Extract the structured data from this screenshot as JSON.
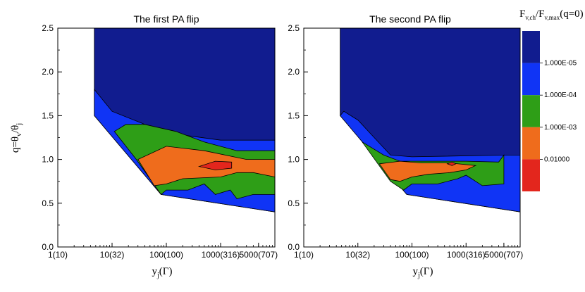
{
  "chart_data": [
    {
      "type": "contour",
      "title": "The first PA flip",
      "xlabel": "y_j(Γ)",
      "ylabel": "q=θ_v/θ_j",
      "x_scale": "log",
      "x_ticks": [
        {
          "value": 1,
          "label": "1(10)"
        },
        {
          "value": 10,
          "label": "10(32)"
        },
        {
          "value": 100,
          "label": "100(100)"
        },
        {
          "value": 1000,
          "label": "1000(316)"
        },
        {
          "value": 5000,
          "label": "5000(707)"
        }
      ],
      "y_ticks": [
        0.0,
        0.5,
        1.0,
        1.5,
        2.0,
        2.5
      ],
      "y_tick_labels": [
        "0.0",
        "0.5",
        "1.0",
        "1.5",
        "2.0",
        "2.5"
      ],
      "xlim": [
        1,
        10000
      ],
      "ylim": [
        0,
        2.5
      ],
      "regions": [
        {
          "level": "<1.000E-05",
          "color": "#111c8f",
          "points": [
            [
              4.7,
              2.5
            ],
            [
              10000,
              2.5
            ],
            [
              10000,
              0.4
            ],
            [
              80,
              0.6
            ],
            [
              4.7,
              1.5
            ]
          ]
        },
        {
          "level": "1.000E-05",
          "color": "#1034f5",
          "points": [
            [
              4.7,
              1.8
            ],
            [
              10,
              1.55
            ],
            [
              40,
              1.4
            ],
            [
              200,
              1.28
            ],
            [
              1000,
              1.22
            ],
            [
              10000,
              1.22
            ],
            [
              10000,
              0.4
            ],
            [
              80,
              0.6
            ],
            [
              4.7,
              1.5
            ]
          ]
        },
        {
          "level": "1.000E-04",
          "color": "#2e9e17",
          "points": [
            [
              11,
              1.32
            ],
            [
              18,
              1.4
            ],
            [
              40,
              1.4
            ],
            [
              150,
              1.32
            ],
            [
              500,
              1.2
            ],
            [
              2000,
              1.1
            ],
            [
              10000,
              1.1
            ],
            [
              10000,
              0.6
            ],
            [
              4000,
              0.6
            ],
            [
              2000,
              0.55
            ],
            [
              1500,
              0.65
            ],
            [
              800,
              0.6
            ],
            [
              500,
              0.72
            ],
            [
              250,
              0.65
            ],
            [
              100,
              0.65
            ],
            [
              80,
              0.6
            ],
            [
              28,
              1.0
            ]
          ]
        },
        {
          "level": "1.000E-03",
          "color": "#ef6c1c",
          "points": [
            [
              30,
              1.0
            ],
            [
              100,
              1.15
            ],
            [
              500,
              1.1
            ],
            [
              3000,
              1.0
            ],
            [
              10000,
              1.0
            ],
            [
              10000,
              0.8
            ],
            [
              4000,
              0.85
            ],
            [
              2000,
              0.85
            ],
            [
              1000,
              0.8
            ],
            [
              200,
              0.78
            ],
            [
              100,
              0.72
            ],
            [
              60,
              0.7
            ]
          ]
        },
        {
          "level": "1.000E-02",
          "color": "#e3261d",
          "points": [
            [
              400,
              0.92
            ],
            [
              800,
              0.98
            ],
            [
              1600,
              0.97
            ],
            [
              1600,
              0.9
            ],
            [
              800,
              0.88
            ]
          ]
        }
      ]
    },
    {
      "type": "contour",
      "title": "The second PA flip",
      "xlabel": "y_j(Γ)",
      "ylabel": "",
      "x_scale": "log",
      "x_ticks": [
        {
          "value": 1,
          "label": "1(10)"
        },
        {
          "value": 10,
          "label": "10(32)"
        },
        {
          "value": 100,
          "label": "100(100)"
        },
        {
          "value": 1000,
          "label": "1000(316)"
        },
        {
          "value": 5000,
          "label": "5000(707)"
        }
      ],
      "y_ticks": [
        0.0,
        0.5,
        1.0,
        1.5,
        2.0,
        2.5
      ],
      "y_tick_labels": [
        "0.0",
        "0.5",
        "1.0",
        "1.5",
        "2.0",
        "2.5"
      ],
      "xlim": [
        1,
        10000
      ],
      "ylim": [
        0,
        2.5
      ],
      "regions": [
        {
          "level": "<1.000E-05",
          "color": "#111c8f",
          "points": [
            [
              4.7,
              2.5
            ],
            [
              10000,
              2.5
            ],
            [
              10000,
              0.4
            ],
            [
              80,
              0.6
            ],
            [
              4.7,
              1.5
            ]
          ]
        },
        {
          "level": "1.000E-05",
          "color": "#1034f5",
          "points": [
            [
              4.7,
              1.5
            ],
            [
              5.5,
              1.55
            ],
            [
              10,
              1.45
            ],
            [
              20,
              1.25
            ],
            [
              40,
              1.05
            ],
            [
              100,
              1.03
            ],
            [
              5000,
              1.05
            ],
            [
              10000,
              1.05
            ],
            [
              10000,
              0.4
            ],
            [
              80,
              0.6
            ]
          ]
        },
        {
          "level": "1.000E-04",
          "color": "#2e9e17",
          "points": [
            [
              12,
              1.2
            ],
            [
              30,
              1.05
            ],
            [
              60,
              0.98
            ],
            [
              150,
              0.98
            ],
            [
              1000,
              0.98
            ],
            [
              4000,
              0.97
            ],
            [
              5000,
              1.05
            ],
            [
              5000,
              0.72
            ],
            [
              2000,
              0.7
            ],
            [
              1000,
              0.82
            ],
            [
              700,
              0.78
            ],
            [
              300,
              0.72
            ],
            [
              100,
              0.72
            ],
            [
              70,
              0.65
            ],
            [
              40,
              0.75
            ]
          ]
        },
        {
          "level": "1.000E-03",
          "color": "#ef6c1c",
          "points": [
            [
              25,
              0.95
            ],
            [
              60,
              0.98
            ],
            [
              150,
              0.96
            ],
            [
              500,
              0.96
            ],
            [
              1500,
              0.93
            ],
            [
              1000,
              0.88
            ],
            [
              500,
              0.85
            ],
            [
              200,
              0.83
            ],
            [
              100,
              0.8
            ],
            [
              60,
              0.75
            ],
            [
              40,
              0.77
            ]
          ]
        },
        {
          "level": "1.000E-02",
          "color": "#e3261d",
          "points": [
            [
              450,
              0.95
            ],
            [
              550,
              0.97
            ],
            [
              650,
              0.95
            ],
            [
              550,
              0.93
            ]
          ]
        }
      ]
    }
  ],
  "colorbar": {
    "title_main": "F",
    "title_sub1": "v,ch",
    "title_slash": "/F",
    "title_sub2": "v,max",
    "title_end": "(q=0)",
    "bands": [
      {
        "color": "#111c8f",
        "label": "1.000E-05"
      },
      {
        "color": "#1034f5",
        "label": "1.000E-04"
      },
      {
        "color": "#2e9e17",
        "label": "1.000E-03"
      },
      {
        "color": "#ef6c1c",
        "label": "0.01000"
      },
      {
        "color": "#e3261d",
        "label": ""
      }
    ]
  },
  "axis_text": {
    "ylabel_main": "q=θ",
    "ylabel_sub1": "v",
    "ylabel_slash": "/θ",
    "ylabel_sub2": "j",
    "xlabel_main": "y",
    "xlabel_sub": "j",
    "xlabel_end": "(Γ)"
  }
}
